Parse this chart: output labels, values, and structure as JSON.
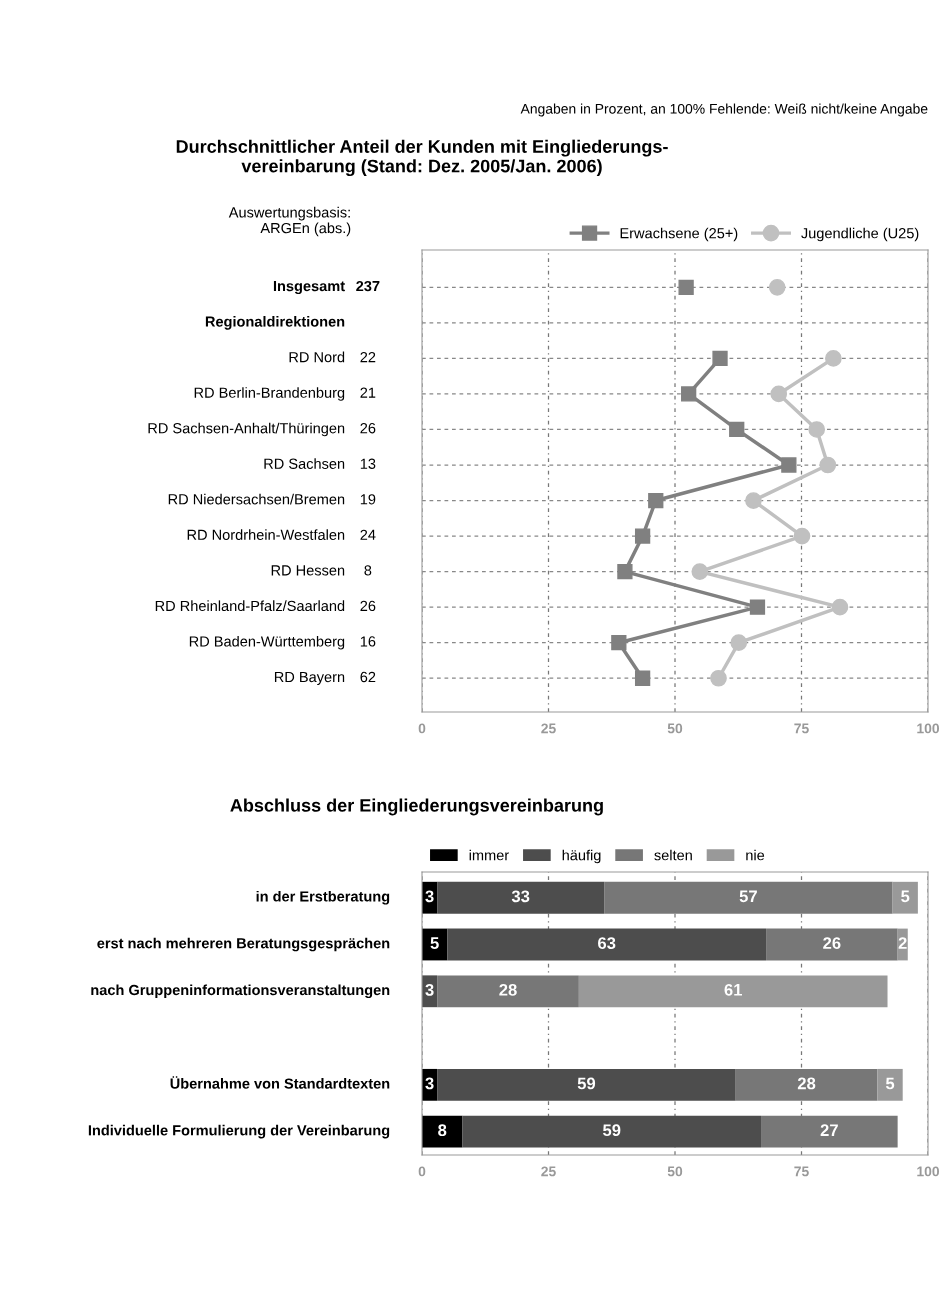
{
  "chart_data": [
    {
      "type": "line",
      "title": "Durchschnittlicher Anteil der Kunden mit Eingliederungs-\nvereinbarung (Stand: Dez. 2005/Jan. 2006)",
      "orientation": "horizontal",
      "categories": [
        "Insgesamt",
        "Regionaldirektionen",
        "RD Nord",
        "RD Berlin-Brandenburg",
        "RD Sachsen-Anhalt/Thüringen",
        "RD Sachsen",
        "RD Niedersachsen/Bremen",
        "RD Nordrhein-Westfalen",
        "RD Hessen",
        "RD Rheinland-Pfalz/Saarland",
        "RD Baden-Württemberg",
        "RD Bayern"
      ],
      "y2_categories": [
        "237",
        null,
        "22",
        "21",
        "26",
        "13",
        "19",
        "24",
        "8",
        "26",
        "16",
        "62"
      ],
      "y2label": "Auswertungsbasis:\nARGEn (abs.)",
      "series": [
        {
          "name": "Erwachsene (25+)",
          "color": "#808080",
          "marker": "square",
          "values": [
            52.2,
            null,
            58.9,
            52.7,
            62.2,
            72.5,
            46.2,
            43.6,
            40.1,
            66.3,
            38.9,
            43.6
          ]
        },
        {
          "name": "Jugendliche (U25)",
          "color": "#c0c0c0",
          "marker": "circle",
          "values": [
            70.2,
            null,
            81.3,
            70.5,
            78.0,
            80.2,
            65.5,
            75.1,
            54.9,
            82.6,
            62.6,
            58.6
          ]
        }
      ],
      "xlim": [
        0,
        100
      ],
      "xticks": [
        0,
        25,
        50,
        75,
        100
      ],
      "grid": true,
      "legend": "top right",
      "annotations": [
        "Angaben in Prozent, an 100% Fehlende: Weiß nicht/keine Angabe"
      ]
    },
    {
      "type": "bar",
      "title": "Abschluss der Eingliederungsvereinbarung",
      "orientation": "horizontal",
      "stacked": true,
      "data_labels": true,
      "categories": [
        "in der Erstberatung",
        "erst nach mehreren Beratungsgesprächen",
        "nach Gruppeninformationsveranstaltungen",
        null,
        "Übernahme von Standardtexten",
        "Individuelle Formulierung der Vereinbarung"
      ],
      "series": [
        {
          "name": "immer",
          "color": "#000000",
          "values": [
            3,
            5,
            null,
            null,
            3,
            8
          ]
        },
        {
          "name": "häufig",
          "color": "#4d4d4d",
          "values": [
            33,
            63,
            3,
            null,
            59,
            59
          ]
        },
        {
          "name": "selten",
          "color": "#777777",
          "values": [
            57,
            26,
            28,
            null,
            28,
            27
          ]
        },
        {
          "name": "nie",
          "color": "#999999",
          "values": [
            5,
            2,
            61,
            null,
            5,
            null
          ]
        }
      ],
      "xlim": [
        0,
        100
      ],
      "xticks": [
        0,
        25,
        50,
        75,
        100
      ],
      "grid": "x",
      "legend": "top left"
    }
  ]
}
